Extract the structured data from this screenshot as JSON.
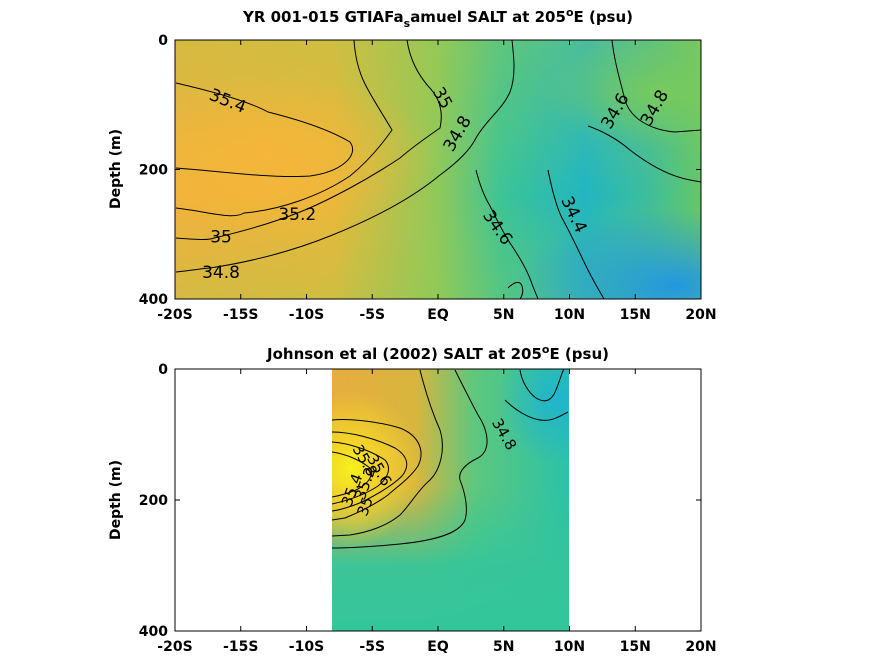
{
  "figure": {
    "panels": [
      {
        "title_main": "YR 001-015 GTIAFa",
        "title_sub": "s",
        "title_rest": "amuel SALT at 205",
        "title_sup": "o",
        "title_end": "E (psu)"
      },
      {
        "title_main": "Johnson et al (2002) SALT at 205",
        "title_sub": "",
        "title_rest": "",
        "title_sup": "o",
        "title_end": "E (psu)"
      }
    ]
  },
  "colors": {
    "high": "#f6b63a",
    "mid": "#35c59a",
    "low": "#1e9be0",
    "max": "#f5f510"
  },
  "chart_data": [
    {
      "type": "heatmap",
      "title": "YR 001-015 GTIAFa_samuel SALT at 205°E (psu)",
      "xlabel": "",
      "ylabel": "Depth (m)",
      "x_ticks": [
        "-20S",
        "-15S",
        "-10S",
        "-5S",
        "EQ",
        "5N",
        "10N",
        "15N",
        "20N"
      ],
      "y_ticks": [
        "0",
        "200",
        "400"
      ],
      "xlim": [
        -20,
        20
      ],
      "ylim": [
        400,
        0
      ],
      "contour_levels": [
        34.4,
        34.6,
        34.8,
        35.0,
        35.2,
        35.4
      ],
      "contour_labels": [
        {
          "text": "35.4",
          "lat": -16,
          "depth": 95
        },
        {
          "text": "35",
          "lat": 0.3,
          "depth": 90
        },
        {
          "text": "34.8",
          "lat": 1.5,
          "depth": 145
        },
        {
          "text": "34.6",
          "lat": 13.5,
          "depth": 110
        },
        {
          "text": "34.8",
          "lat": 16.5,
          "depth": 105
        },
        {
          "text": "35.2",
          "lat": -10.7,
          "depth": 270
        },
        {
          "text": "35",
          "lat": -16.5,
          "depth": 305
        },
        {
          "text": "34.8",
          "lat": -16.5,
          "depth": 360
        },
        {
          "text": "34.6",
          "lat": 4.5,
          "depth": 290
        },
        {
          "text": "34.4",
          "lat": 10.3,
          "depth": 270
        }
      ]
    },
    {
      "type": "heatmap",
      "title": "Johnson et al (2002) SALT at 205°E (psu)",
      "xlabel": "",
      "ylabel": "Depth (m)",
      "x_ticks": [
        "-20S",
        "-15S",
        "-10S",
        "-5S",
        "EQ",
        "5N",
        "10N",
        "15N",
        "20N"
      ],
      "y_ticks": [
        "0",
        "200",
        "400"
      ],
      "xlim": [
        -20,
        20
      ],
      "ylim": [
        400,
        0
      ],
      "data_lat_range": [
        -8,
        10
      ],
      "contour_levels": [
        34.8,
        35.0,
        35.2,
        35.4,
        35.6,
        35.8
      ],
      "contour_labels": [
        {
          "text": "34.8",
          "lat": 5,
          "depth": 100
        },
        {
          "text": "35",
          "lat": -5.5,
          "depth": 210
        },
        {
          "text": "35.2",
          "lat": -5.5,
          "depth": 175
        },
        {
          "text": "35.4",
          "lat": -6.5,
          "depth": 185
        },
        {
          "text": "35.6",
          "lat": -4.5,
          "depth": 155
        },
        {
          "text": "35.8",
          "lat": -5.6,
          "depth": 140
        }
      ]
    }
  ]
}
